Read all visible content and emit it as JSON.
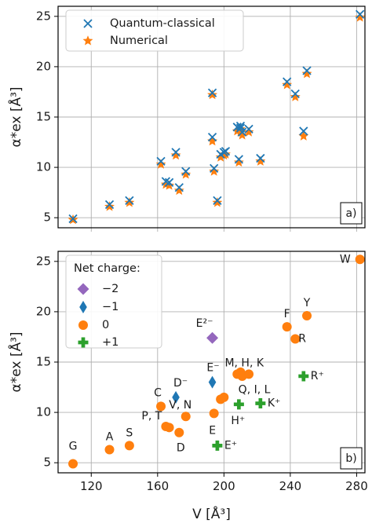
{
  "colors": {
    "quantum": "#1f77b4",
    "numerical": "#ff7f0e",
    "charge_minus2": "#9467bd",
    "charge_minus1": "#1f77b4",
    "charge_0": "#ff7f0e",
    "charge_plus1": "#2ca02c"
  },
  "chart_data": [
    {
      "type": "scatter",
      "panel_tag": "a)",
      "xlim": [
        100,
        285
      ],
      "ylim": [
        4,
        26
      ],
      "yticks": [
        "5",
        "10",
        "15",
        "20",
        "25"
      ],
      "ylabel": "α*ex [Å³]",
      "legend_position": "top-left",
      "series": [
        {
          "name": "Quantum-classical",
          "marker": "x",
          "x": [
            109,
            131,
            143,
            162,
            165,
            167,
            171,
            173,
            177,
            193,
            193,
            194,
            196,
            198,
            200,
            201,
            208,
            209,
            210,
            210,
            211,
            215,
            222,
            238,
            243,
            248,
            250,
            282
          ],
          "y": [
            4.9,
            6.3,
            6.7,
            10.6,
            8.6,
            8.5,
            11.5,
            8.0,
            9.6,
            17.4,
            13.0,
            9.9,
            6.7,
            11.3,
            11.5,
            11.6,
            14.0,
            10.8,
            13.9,
            14.1,
            13.5,
            13.8,
            10.9,
            18.5,
            17.3,
            13.6,
            19.6,
            25.2
          ]
        },
        {
          "name": "Numerical",
          "marker": "star",
          "x": [
            109,
            131,
            143,
            162,
            165,
            167,
            171,
            173,
            177,
            193,
            193,
            194,
            196,
            198,
            200,
            201,
            208,
            209,
            210,
            210,
            211,
            215,
            222,
            238,
            243,
            248,
            250,
            282
          ],
          "y": [
            4.8,
            6.1,
            6.5,
            10.3,
            8.3,
            8.2,
            11.2,
            7.7,
            9.3,
            17.2,
            12.6,
            9.6,
            6.5,
            11.0,
            11.2,
            11.3,
            13.6,
            10.5,
            13.5,
            13.8,
            13.2,
            13.5,
            10.6,
            18.2,
            17.0,
            13.1,
            19.3,
            24.9
          ]
        }
      ]
    },
    {
      "type": "scatter",
      "panel_tag": "b)",
      "xlim": [
        100,
        285
      ],
      "ylim": [
        4,
        26
      ],
      "xticks": [
        "120",
        "160",
        "200",
        "240",
        "280"
      ],
      "yticks": [
        "5",
        "10",
        "15",
        "20",
        "25"
      ],
      "xlabel": "V [Å³]",
      "ylabel": "α*ex [Å³]",
      "legend_title": "Net charge:",
      "legend_position": "top-left",
      "categories": [
        {
          "name": "−2",
          "marker": "diamond",
          "color_key": "charge_minus2"
        },
        {
          "name": "−1",
          "marker": "thin-diamond",
          "color_key": "charge_minus1"
        },
        {
          "name": "0",
          "marker": "circle",
          "color_key": "charge_0"
        },
        {
          "name": "+1",
          "marker": "plus",
          "color_key": "charge_plus1"
        }
      ],
      "points": [
        {
          "label": "G",
          "x": 109,
          "y": 4.9,
          "charge": 2
        },
        {
          "label": "A",
          "x": 131,
          "y": 6.3,
          "charge": 2
        },
        {
          "label": "S",
          "x": 143,
          "y": 6.7,
          "charge": 2
        },
        {
          "label": "C",
          "x": 162,
          "y": 10.6,
          "charge": 2
        },
        {
          "label": "P, T",
          "x": 165,
          "y": 8.6,
          "charge": 2
        },
        {
          "label": "",
          "x": 167,
          "y": 8.5,
          "charge": 2
        },
        {
          "label": "D",
          "x": 173,
          "y": 8.0,
          "charge": 2
        },
        {
          "label": "V, N",
          "x": 177,
          "y": 9.6,
          "charge": 2
        },
        {
          "label": "E",
          "x": 194,
          "y": 9.9,
          "charge": 2
        },
        {
          "label": "",
          "x": 198,
          "y": 11.3,
          "charge": 2
        },
        {
          "label": "",
          "x": 200,
          "y": 11.5,
          "charge": 2
        },
        {
          "label": "M, H, K",
          "x": 208,
          "y": 13.8,
          "charge": 2
        },
        {
          "label": "",
          "x": 210,
          "y": 14.0,
          "charge": 2
        },
        {
          "label": "",
          "x": 211,
          "y": 13.6,
          "charge": 2
        },
        {
          "label": "Q, I, L",
          "x": 215,
          "y": 13.8,
          "charge": 2
        },
        {
          "label": "F",
          "x": 238,
          "y": 18.5,
          "charge": 2
        },
        {
          "label": "R",
          "x": 243,
          "y": 17.3,
          "charge": 2
        },
        {
          "label": "Y",
          "x": 250,
          "y": 19.6,
          "charge": 2
        },
        {
          "label": "W",
          "x": 282,
          "y": 25.2,
          "charge": 2
        },
        {
          "label": "D⁻",
          "x": 171,
          "y": 11.5,
          "charge": 1
        },
        {
          "label": "E⁻",
          "x": 193,
          "y": 13.0,
          "charge": 1
        },
        {
          "label": "E²⁻",
          "x": 193,
          "y": 17.4,
          "charge": 0
        },
        {
          "label": "E⁺",
          "x": 196,
          "y": 6.7,
          "charge": 3
        },
        {
          "label": "H⁺",
          "x": 209,
          "y": 10.8,
          "charge": 3
        },
        {
          "label": "K⁺",
          "x": 222,
          "y": 10.9,
          "charge": 3
        },
        {
          "label": "R⁺",
          "x": 248,
          "y": 13.6,
          "charge": 3
        }
      ]
    }
  ]
}
